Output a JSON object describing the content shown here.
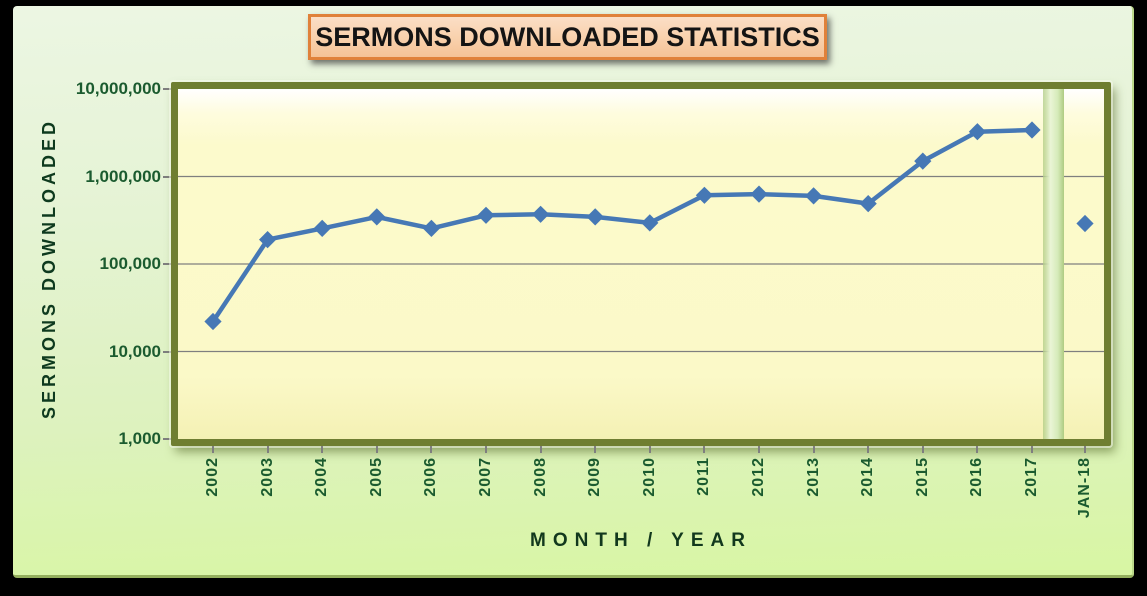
{
  "chart_data": {
    "type": "line",
    "title": "SERMONS DOWNLOADED STATISTICS",
    "xlabel": "MONTH / YEAR",
    "ylabel": "SERMONS DOWNLOADED",
    "y_scale": "log",
    "ylim": [
      1000,
      10000000
    ],
    "grid": true,
    "legend": "none",
    "y_ticks": [
      {
        "value": 10000000,
        "label": "10,000,000"
      },
      {
        "value": 1000000,
        "label": "1,000,000"
      },
      {
        "value": 100000,
        "label": "100,000"
      },
      {
        "value": 10000,
        "label": "10,000"
      },
      {
        "value": 1000,
        "label": "1,000"
      }
    ],
    "categories": [
      "2002",
      "2003",
      "2004",
      "2005",
      "2006",
      "2007",
      "2008",
      "2009",
      "2010",
      "2011",
      "2012",
      "2013",
      "2014",
      "2015",
      "2016",
      "2017"
    ],
    "values": [
      22000,
      190000,
      255000,
      345000,
      255000,
      360000,
      370000,
      345000,
      295000,
      610000,
      630000,
      600000,
      490000,
      1500000,
      3250000,
      3400000
    ],
    "separated_point": {
      "category": "JAN-18",
      "value": 290000
    },
    "series_color": "#4678B5",
    "marker": "diamond",
    "grid_color": "#7F7F7F"
  },
  "colors": {
    "title_box_border": "#E0813A",
    "title_box_fill": "#F8D2AE",
    "plot_border": "#6F7E31",
    "plot_fill": "#FCFACC",
    "card_bg_top": "#ECF6E3",
    "card_bg_bottom": "#D8F6A3",
    "separator_band_light": "#EAF5D6",
    "separator_band_dark": "#AFCB82",
    "tick_label_color": "#1B5B2F",
    "axis_title_color": "#0E3A1E",
    "page_background": "#000000"
  }
}
